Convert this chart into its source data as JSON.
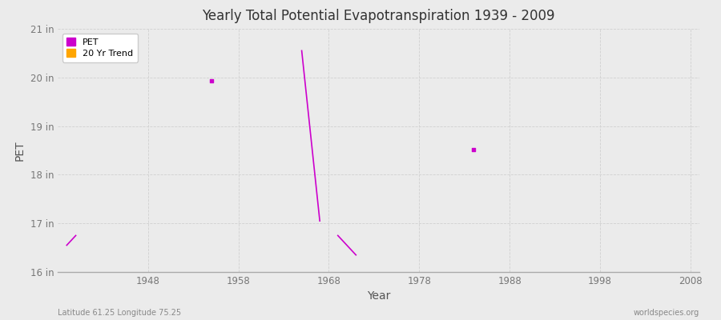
{
  "title": "Yearly Total Potential Evapotranspiration 1939 - 2009",
  "xlabel": "Year",
  "ylabel": "PET",
  "subtitle_left": "Latitude 61.25 Longitude 75.25",
  "subtitle_right": "worldspecies.org",
  "xlim": [
    1938,
    2009
  ],
  "ylim": [
    16.0,
    21.0
  ],
  "yticks": [
    16,
    17,
    18,
    19,
    20,
    21
  ],
  "ytick_labels": [
    "16 in",
    "17 in",
    "18 in",
    "19 in",
    "20 in",
    "21 in"
  ],
  "xticks": [
    1948,
    1958,
    1968,
    1978,
    1988,
    1998,
    2008
  ],
  "fig_bg_color": "#ebebeb",
  "plot_bg_color": "#ebebeb",
  "grid_color": "#d0d0d0",
  "pet_color": "#cc00cc",
  "trend_color": "#ffa500",
  "pet_points": [
    [
      1955,
      19.93
    ],
    [
      1984,
      18.52
    ]
  ],
  "pet_line_segments": [
    [
      [
        1939,
        16.55
      ],
      [
        1940,
        16.75
      ]
    ],
    [
      [
        1965,
        20.55
      ],
      [
        1967,
        17.05
      ]
    ],
    [
      [
        1969,
        16.75
      ],
      [
        1971,
        16.35
      ]
    ]
  ]
}
